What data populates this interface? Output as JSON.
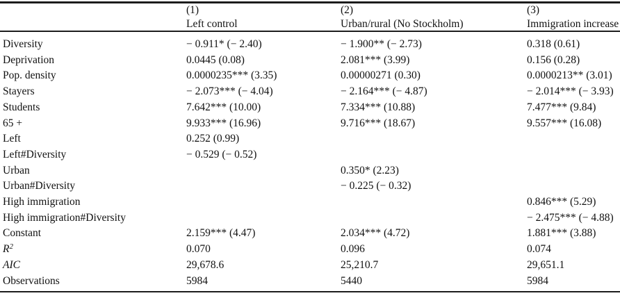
{
  "page": {
    "background_color": "#ffffff",
    "text_color": "#111111",
    "rule_color": "#1c1c1c"
  },
  "table": {
    "kind": "regression-results",
    "cell_format": "coefficient significance-stars (t-statistic)",
    "columns": [
      {
        "number": "(1)",
        "label": "Left control"
      },
      {
        "number": "(2)",
        "label": "Urban/rural (No Stockholm)"
      },
      {
        "number": "(3)",
        "label": "Immigration increase"
      }
    ],
    "rows": [
      {
        "label": "Diversity",
        "values": [
          "− 0.911* (− 2.40)",
          "− 1.900** (− 2.73)",
          "0.318 (0.61)"
        ]
      },
      {
        "label": "Deprivation",
        "values": [
          "0.0445 (0.08)",
          "2.081*** (3.99)",
          "0.156 (0.28)"
        ]
      },
      {
        "label": "Pop. density",
        "values": [
          "0.0000235*** (3.35)",
          "0.00000271 (0.30)",
          "0.0000213** (3.01)"
        ]
      },
      {
        "label": "Stayers",
        "values": [
          "− 2.073*** (− 4.04)",
          "− 2.164*** (− 4.87)",
          "− 2.014*** (− 3.93)"
        ]
      },
      {
        "label": "Students",
        "values": [
          "7.642*** (10.00)",
          "7.334*** (10.88)",
          "7.477*** (9.84)"
        ]
      },
      {
        "label": "65 +",
        "values": [
          "9.933*** (16.96)",
          "9.716*** (18.67)",
          "9.557*** (16.08)"
        ]
      },
      {
        "label": "Left",
        "values": [
          "0.252 (0.99)",
          "",
          ""
        ]
      },
      {
        "label": "Left#Diversity",
        "values": [
          "− 0.529 (− 0.52)",
          "",
          ""
        ]
      },
      {
        "label": "Urban",
        "values": [
          "",
          "0.350* (2.23)",
          ""
        ]
      },
      {
        "label": "Urban#Diversity",
        "values": [
          "",
          "− 0.225 (− 0.32)",
          ""
        ]
      },
      {
        "label": "High immigration",
        "values": [
          "",
          "",
          "0.846*** (5.29)"
        ]
      },
      {
        "label": "High immigration#Diversity",
        "values": [
          "",
          "",
          "− 2.475*** (− 4.88)"
        ]
      },
      {
        "label": "Constant",
        "values": [
          "2.159*** (4.47)",
          "2.034*** (4.72)",
          "1.881*** (3.88)"
        ]
      },
      {
        "label": "R",
        "label_sup": "2",
        "label_italic": true,
        "values": [
          "0.070",
          "0.096",
          "0.074"
        ]
      },
      {
        "label": "AIC",
        "label_italic": true,
        "values": [
          "29,678.6",
          "25,210.7",
          "29,651.1"
        ]
      },
      {
        "label": "Observations",
        "values": [
          "5984",
          "5440",
          "5984"
        ]
      }
    ]
  }
}
